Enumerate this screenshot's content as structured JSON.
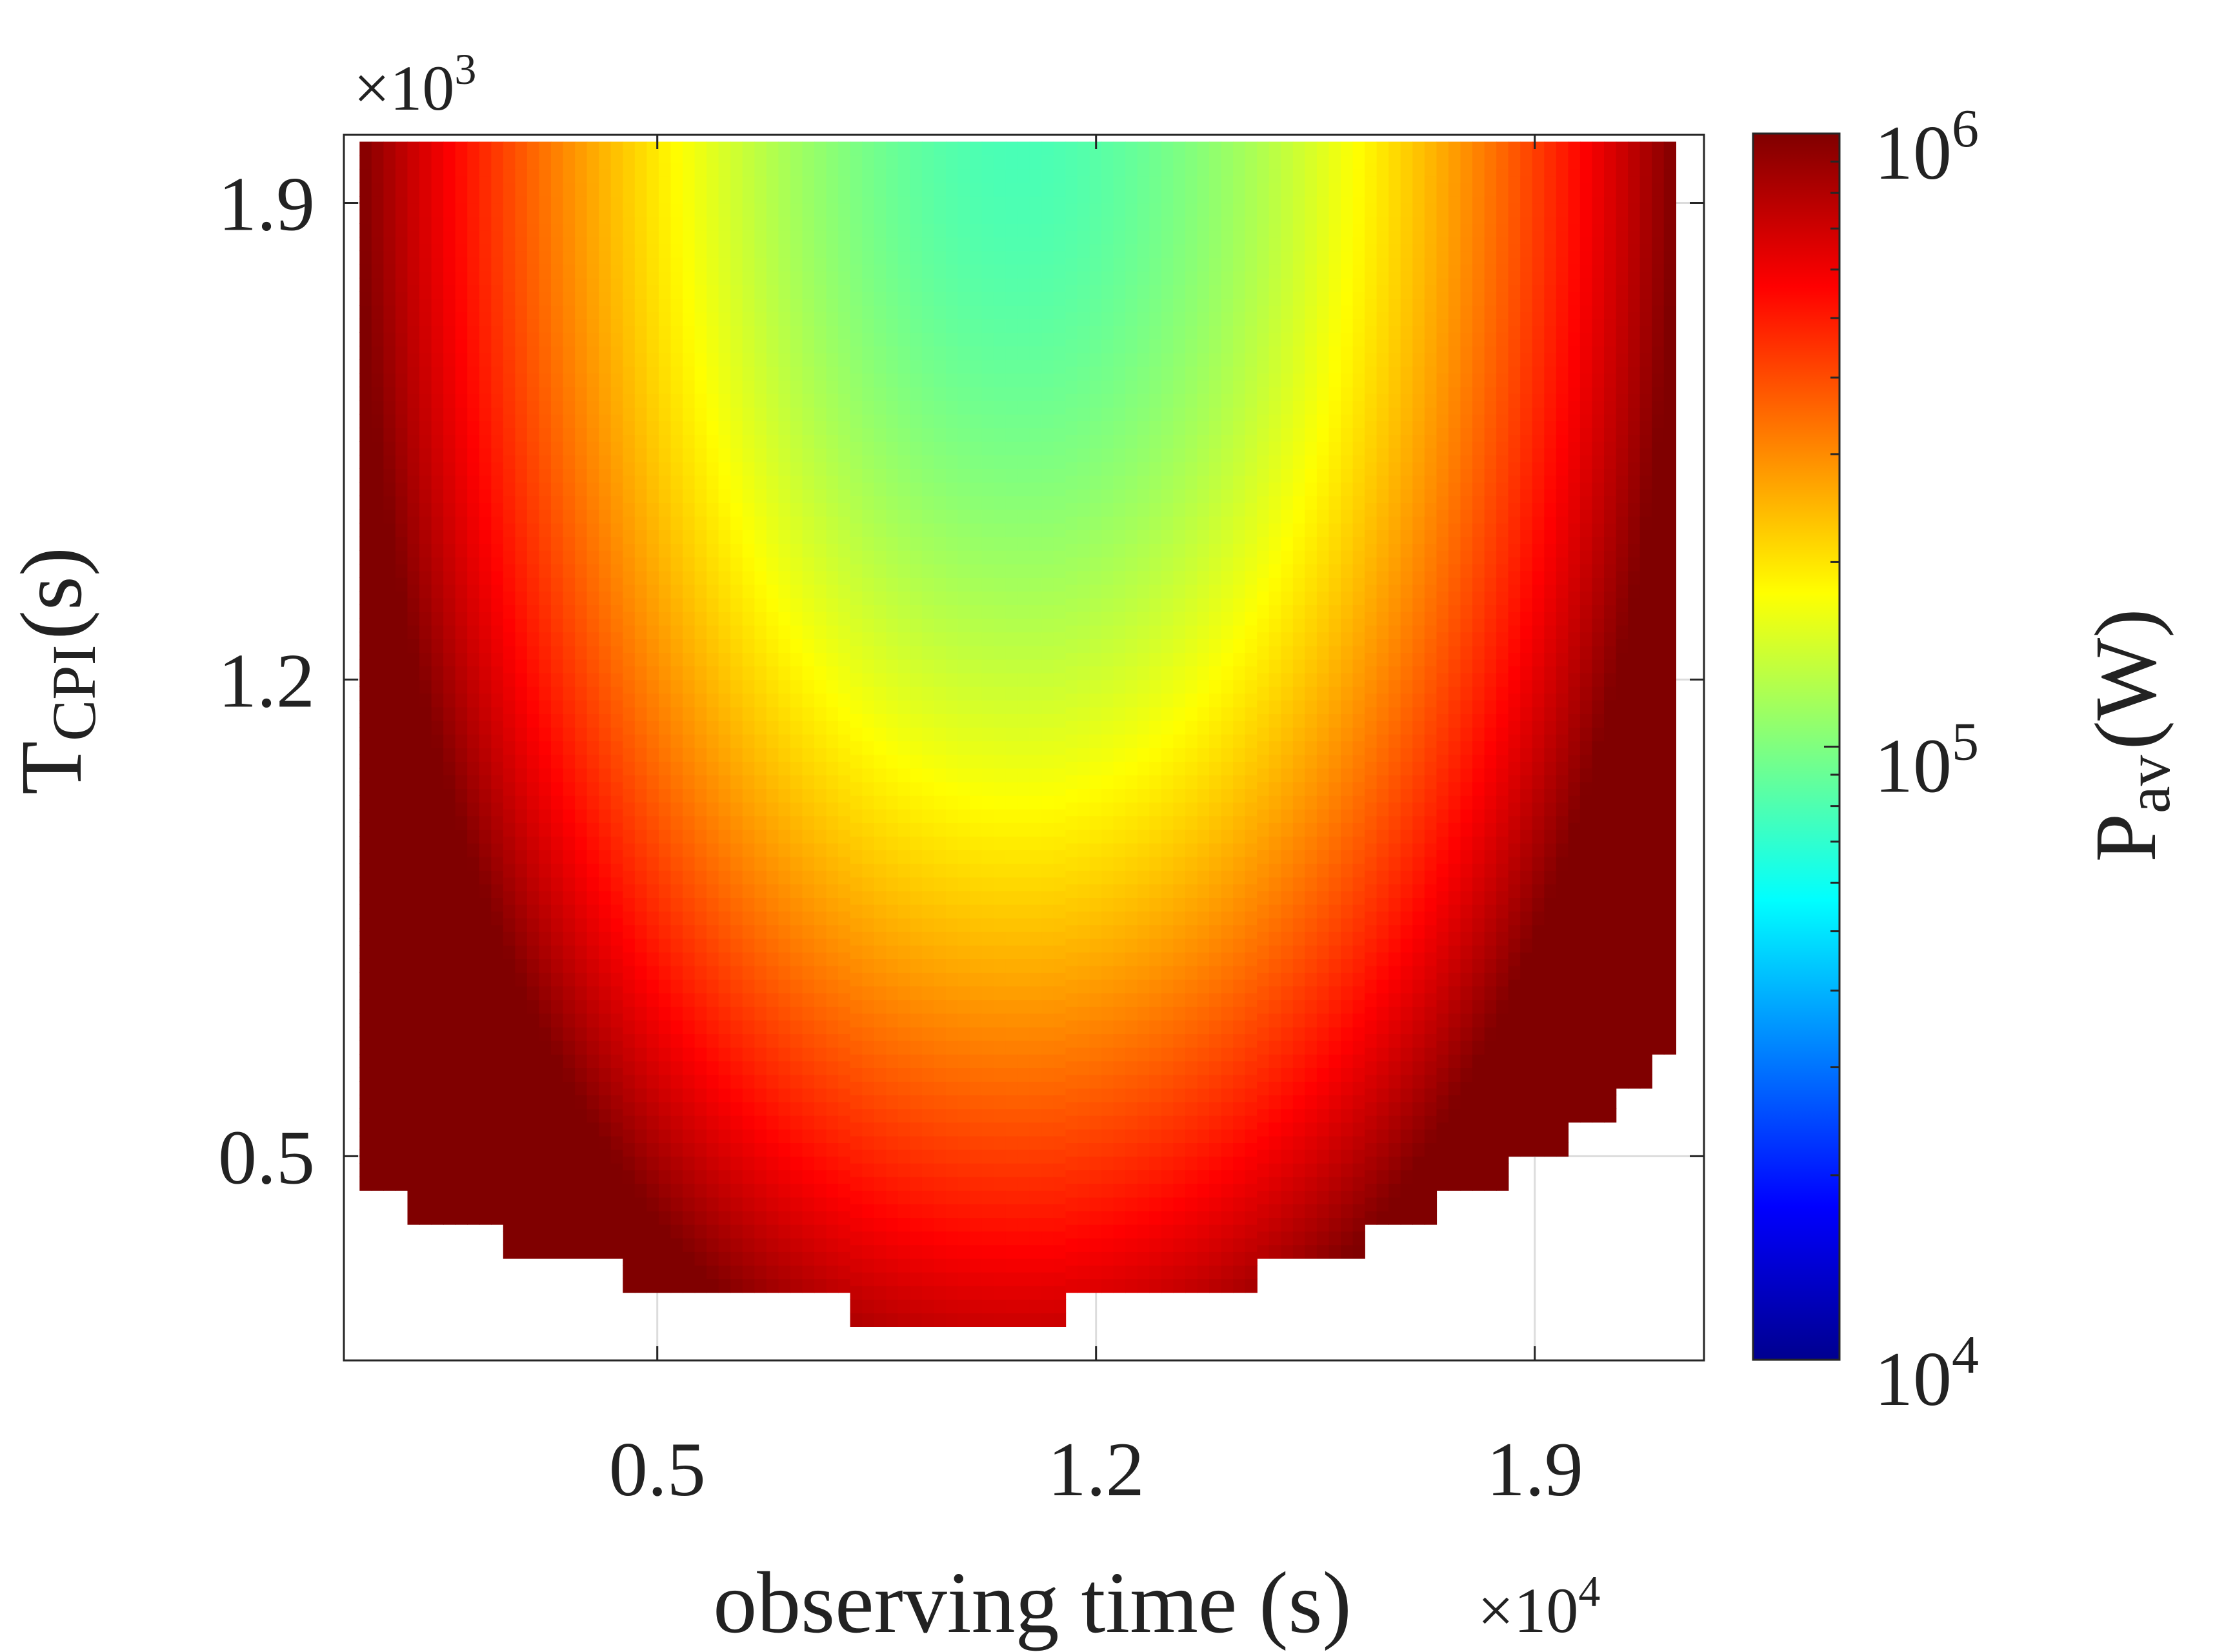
{
  "chart_data": {
    "type": "heatmap",
    "xlabel": "observing time (s)",
    "ylabel": {
      "main": "T",
      "sub": "CPI",
      "unit": "(s)"
    },
    "colorbar_label": {
      "main": "P",
      "sub": "av",
      "unit": "(W)"
    },
    "x_exponent": {
      "base": "×10",
      "power": "4"
    },
    "y_exponent": {
      "base": "×10",
      "power": "3"
    },
    "x_ticks": [
      {
        "value": 5000,
        "label": "0.5"
      },
      {
        "value": 12000,
        "label": "1.2"
      },
      {
        "value": 19000,
        "label": "1.9"
      }
    ],
    "y_ticks": [
      {
        "value": 500,
        "label": "0.5"
      },
      {
        "value": 1200,
        "label": "1.2"
      },
      {
        "value": 1900,
        "label": "1.9"
      }
    ],
    "colorbar_ticks": [
      {
        "value": 10000,
        "base": "10",
        "power": "4"
      },
      {
        "value": 100000,
        "base": "10",
        "power": "5"
      },
      {
        "value": 1000000,
        "base": "10",
        "power": "6"
      }
    ],
    "xlim": [
      0,
      21700
    ],
    "ylim": [
      200,
      2000
    ],
    "clim": [
      10000,
      1000000
    ],
    "color_scale": "log",
    "colormap": "jet",
    "grid": true,
    "data_x_range": [
      250,
      21250
    ],
    "data_y_max": 1990,
    "lower_boundary": [
      {
        "x_from": 250,
        "x_to": 1000,
        "y_min": 450
      },
      {
        "x_from": 1000,
        "x_to": 2500,
        "y_min": 400
      },
      {
        "x_from": 2500,
        "x_to": 4500,
        "y_min": 350
      },
      {
        "x_from": 4500,
        "x_to": 8100,
        "y_min": 300
      },
      {
        "x_from": 8100,
        "x_to": 11550,
        "y_min": 250
      },
      {
        "x_from": 11550,
        "x_to": 14600,
        "y_min": 300
      },
      {
        "x_from": 14600,
        "x_to": 16200,
        "y_min": 350
      },
      {
        "x_from": 16200,
        "x_to": 17500,
        "y_min": 400
      },
      {
        "x_from": 17500,
        "x_to": 18550,
        "y_min": 450
      },
      {
        "x_from": 18550,
        "x_to": 19500,
        "y_min": 500
      },
      {
        "x_from": 19500,
        "x_to": 20350,
        "y_min": 550
      },
      {
        "x_from": 20350,
        "x_to": 20900,
        "y_min": 600
      },
      {
        "x_from": 20900,
        "x_to": 21250,
        "y_min": 650
      }
    ],
    "value_model": {
      "x_center": 10750,
      "minimum": 78000,
      "maximum": 1000000
    }
  }
}
